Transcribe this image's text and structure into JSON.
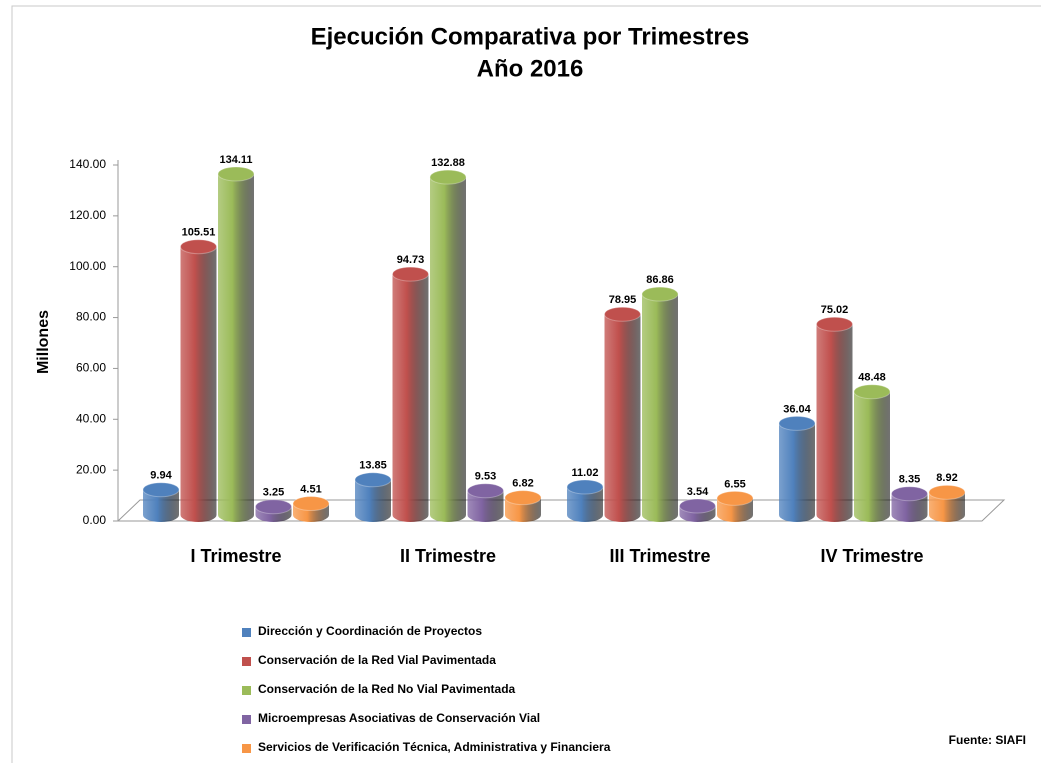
{
  "chart_data": {
    "type": "bar",
    "title": "Ejecución Comparativa por Trimestres",
    "subtitle": "Año 2016",
    "y_label": "Millones",
    "source": "Fuente: SIAFI",
    "categories": [
      "I Trimestre",
      "II Trimestre",
      "III Trimestre",
      "IV Trimestre"
    ],
    "series": [
      {
        "name": "Dirección y Coordinación de Proyectos",
        "color": "#4f81bd",
        "values": [
          9.94,
          13.85,
          11.02,
          36.04
        ]
      },
      {
        "name": "Conservación de la Red Vial Pavimentada",
        "color": "#c0504d",
        "values": [
          105.51,
          94.73,
          78.95,
          75.02
        ]
      },
      {
        "name": "Conservación de la Red No Vial Pavimentada",
        "color": "#9bbb59",
        "values": [
          134.11,
          132.88,
          86.86,
          48.48
        ]
      },
      {
        "name": "Microempresas Asociativas de Conservación Vial",
        "color": "#8064a2",
        "values": [
          3.25,
          9.53,
          3.54,
          8.35
        ]
      },
      {
        "name": "Servicios de Verificación Técnica, Administrativa y Financiera",
        "color": "#f79646",
        "values": [
          4.51,
          6.82,
          6.55,
          8.92
        ]
      }
    ],
    "ylim": [
      0,
      140
    ],
    "yticks": [
      {
        "value": 0,
        "label": "0.00"
      },
      {
        "value": 20,
        "label": "20.00"
      },
      {
        "value": 40,
        "label": "40.00"
      },
      {
        "value": 60,
        "label": "60.00"
      },
      {
        "value": 80,
        "label": "80.00"
      },
      {
        "value": 100,
        "label": "100.00"
      },
      {
        "value": 120,
        "label": "120.00"
      },
      {
        "value": 140,
        "label": "140.00"
      }
    ],
    "legend": "bottom"
  }
}
